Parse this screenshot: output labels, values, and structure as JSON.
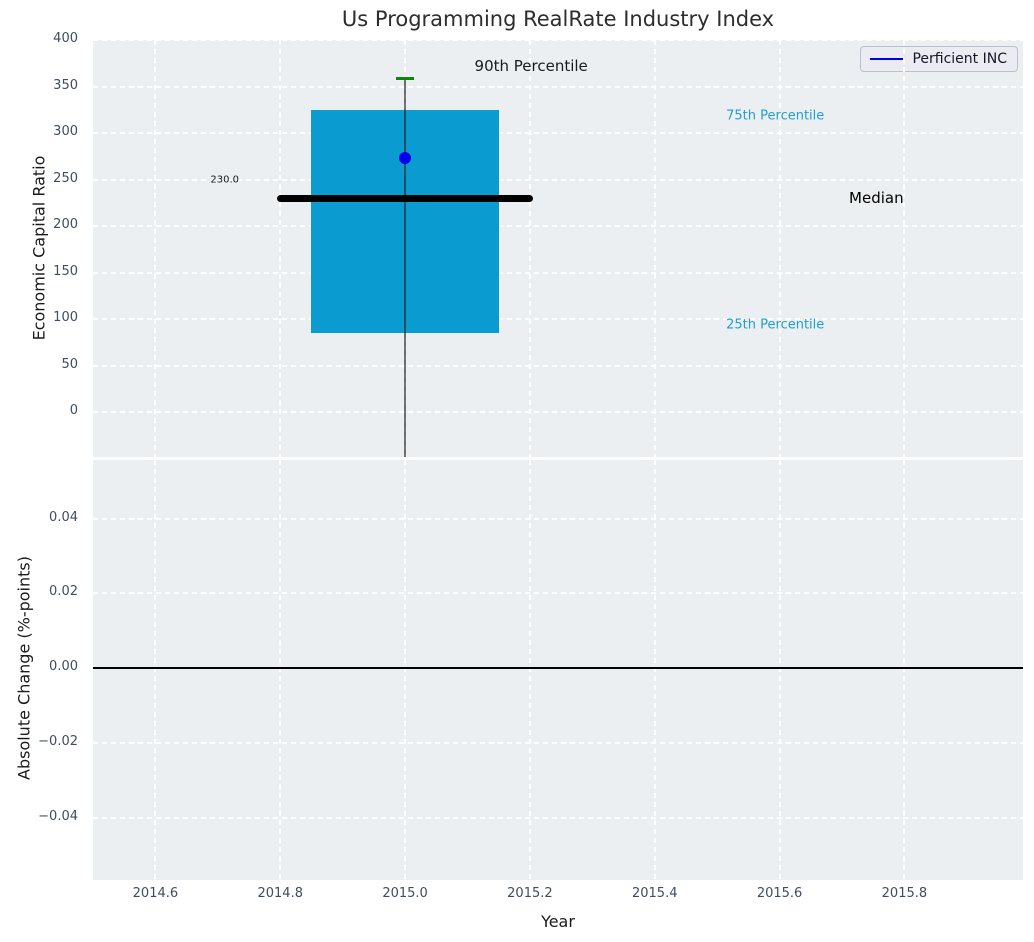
{
  "title": "Us Programming RealRate Industry Index",
  "legend": {
    "label": "Perficient INC",
    "line_color": "#0000ee",
    "position": "upper right"
  },
  "colors": {
    "axes_background": "#eceff1",
    "grid": "#ffffff",
    "tick_label": "#3e4d61",
    "box_fill": "#0a9bd0",
    "median_line": "#000000",
    "p90_cap": "#0c860c",
    "whisker_stem": "rgba(40,40,40,0.65)",
    "company_marker": "#0000f0",
    "percentile_label": "#1f9ecf",
    "zero_line": "#000000"
  },
  "chart_data": [
    {
      "id": "economic-capital-ratio",
      "type": "boxplot",
      "title": "Us Programming RealRate Industry Index",
      "ylabel": "Economic Capital Ratio",
      "ylim": [
        -48,
        400
      ],
      "yticks": [
        400,
        350,
        300,
        250,
        200,
        150,
        100,
        50,
        0
      ],
      "ytick_labels": [
        "400",
        "350",
        "300",
        "250",
        "200",
        "150",
        "100",
        "50",
        "0"
      ],
      "xlim": [
        2014.5,
        2015.99
      ],
      "grid": true,
      "legend_entries": [
        "Perficient INC"
      ],
      "box": {
        "x": 2015.0,
        "half_width": 0.15,
        "q1": 85,
        "median": 230,
        "q3": 325,
        "p90": 359,
        "median_extent_half_width": 0.205,
        "cap_half_width": 0.015,
        "median_value_label": "230.0"
      },
      "series": [
        {
          "name": "Perficient INC",
          "x": 2015.0,
          "value": 273,
          "marker": "circle"
        }
      ],
      "annotations": [
        {
          "key": "p90-label",
          "text": "90th Percentile",
          "x": 2015.202,
          "y": 372,
          "color": "#1a1a1a",
          "size": 15
        },
        {
          "key": "p75-label",
          "text": "75th Percentile",
          "x": 2015.593,
          "y": 318,
          "color": "#1f9ecf",
          "size": 13
        },
        {
          "key": "median-label",
          "text": "Median",
          "x": 2015.755,
          "y": 230,
          "color": "#000000",
          "size": 15
        },
        {
          "key": "p25-label",
          "text": "25th Percentile",
          "x": 2015.593,
          "y": 94,
          "color": "#1f9ecf",
          "size": 13
        },
        {
          "key": "median-value",
          "text": "230.0",
          "x": 2014.711,
          "y": 250,
          "color": "#1a1a1a",
          "size": 10
        }
      ]
    },
    {
      "id": "absolute-change",
      "type": "line",
      "ylabel": "Absolute Change (%-points)",
      "xlabel": "Year",
      "ylim": [
        -0.0567,
        0.0557
      ],
      "yticks": [
        0.04,
        0.02,
        0.0,
        -0.02,
        -0.04
      ],
      "ytick_labels": [
        "0.04",
        "0.02",
        "0.00",
        "−0.02",
        "−0.04"
      ],
      "xlim": [
        2014.5,
        2015.99
      ],
      "xticks": [
        2014.6,
        2014.8,
        2015.0,
        2015.2,
        2015.4,
        2015.6,
        2015.8
      ],
      "xtick_labels": [
        "2014.6",
        "2014.8",
        "2015.0",
        "2015.2",
        "2015.4",
        "2015.6",
        "2015.8"
      ],
      "grid": true,
      "zero_line": 0.0
    }
  ]
}
